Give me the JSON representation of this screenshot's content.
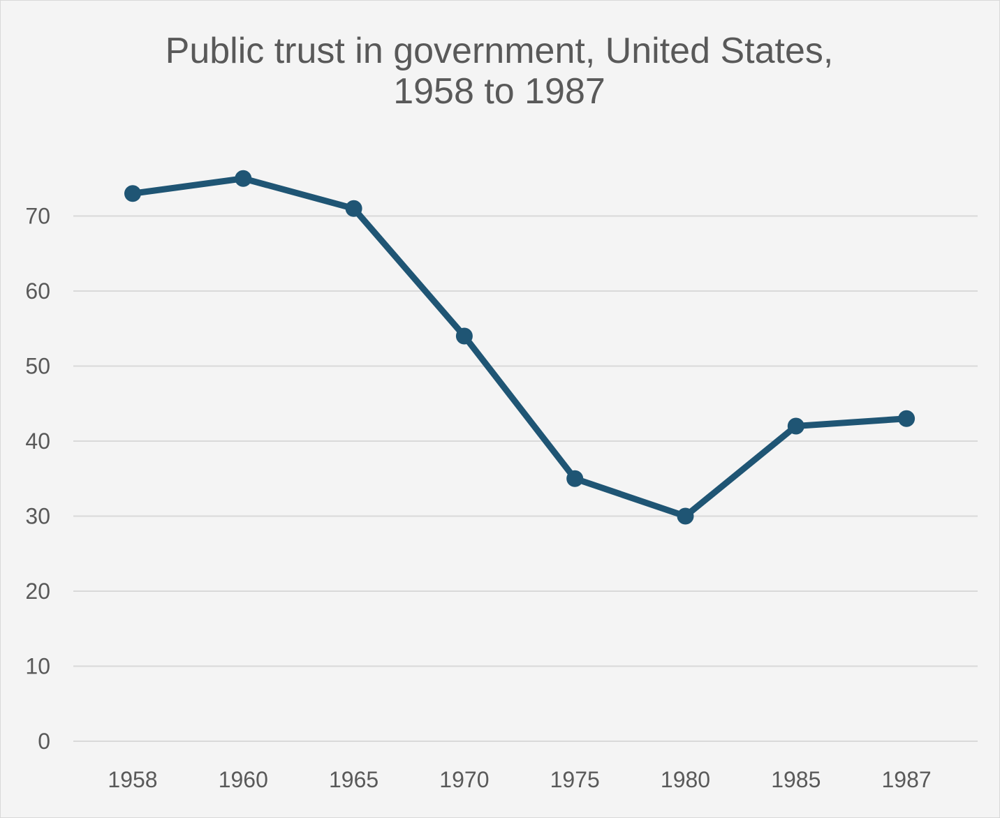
{
  "chart_data": {
    "type": "line",
    "title_lines": [
      "Public trust in government, United States,",
      "1958 to 1987"
    ],
    "categories": [
      "1958",
      "1960",
      "1965",
      "1970",
      "1975",
      "1980",
      "1985",
      "1987"
    ],
    "series": [
      {
        "values": [
          73,
          75,
          71,
          54,
          35,
          30,
          42,
          43
        ],
        "color": "#1f5574"
      }
    ],
    "y_ticks": [
      0,
      10,
      20,
      30,
      40,
      50,
      60,
      70
    ],
    "ylim": [
      0,
      80
    ],
    "grid": true,
    "legend": "none",
    "xlabel": "",
    "ylabel": ""
  }
}
